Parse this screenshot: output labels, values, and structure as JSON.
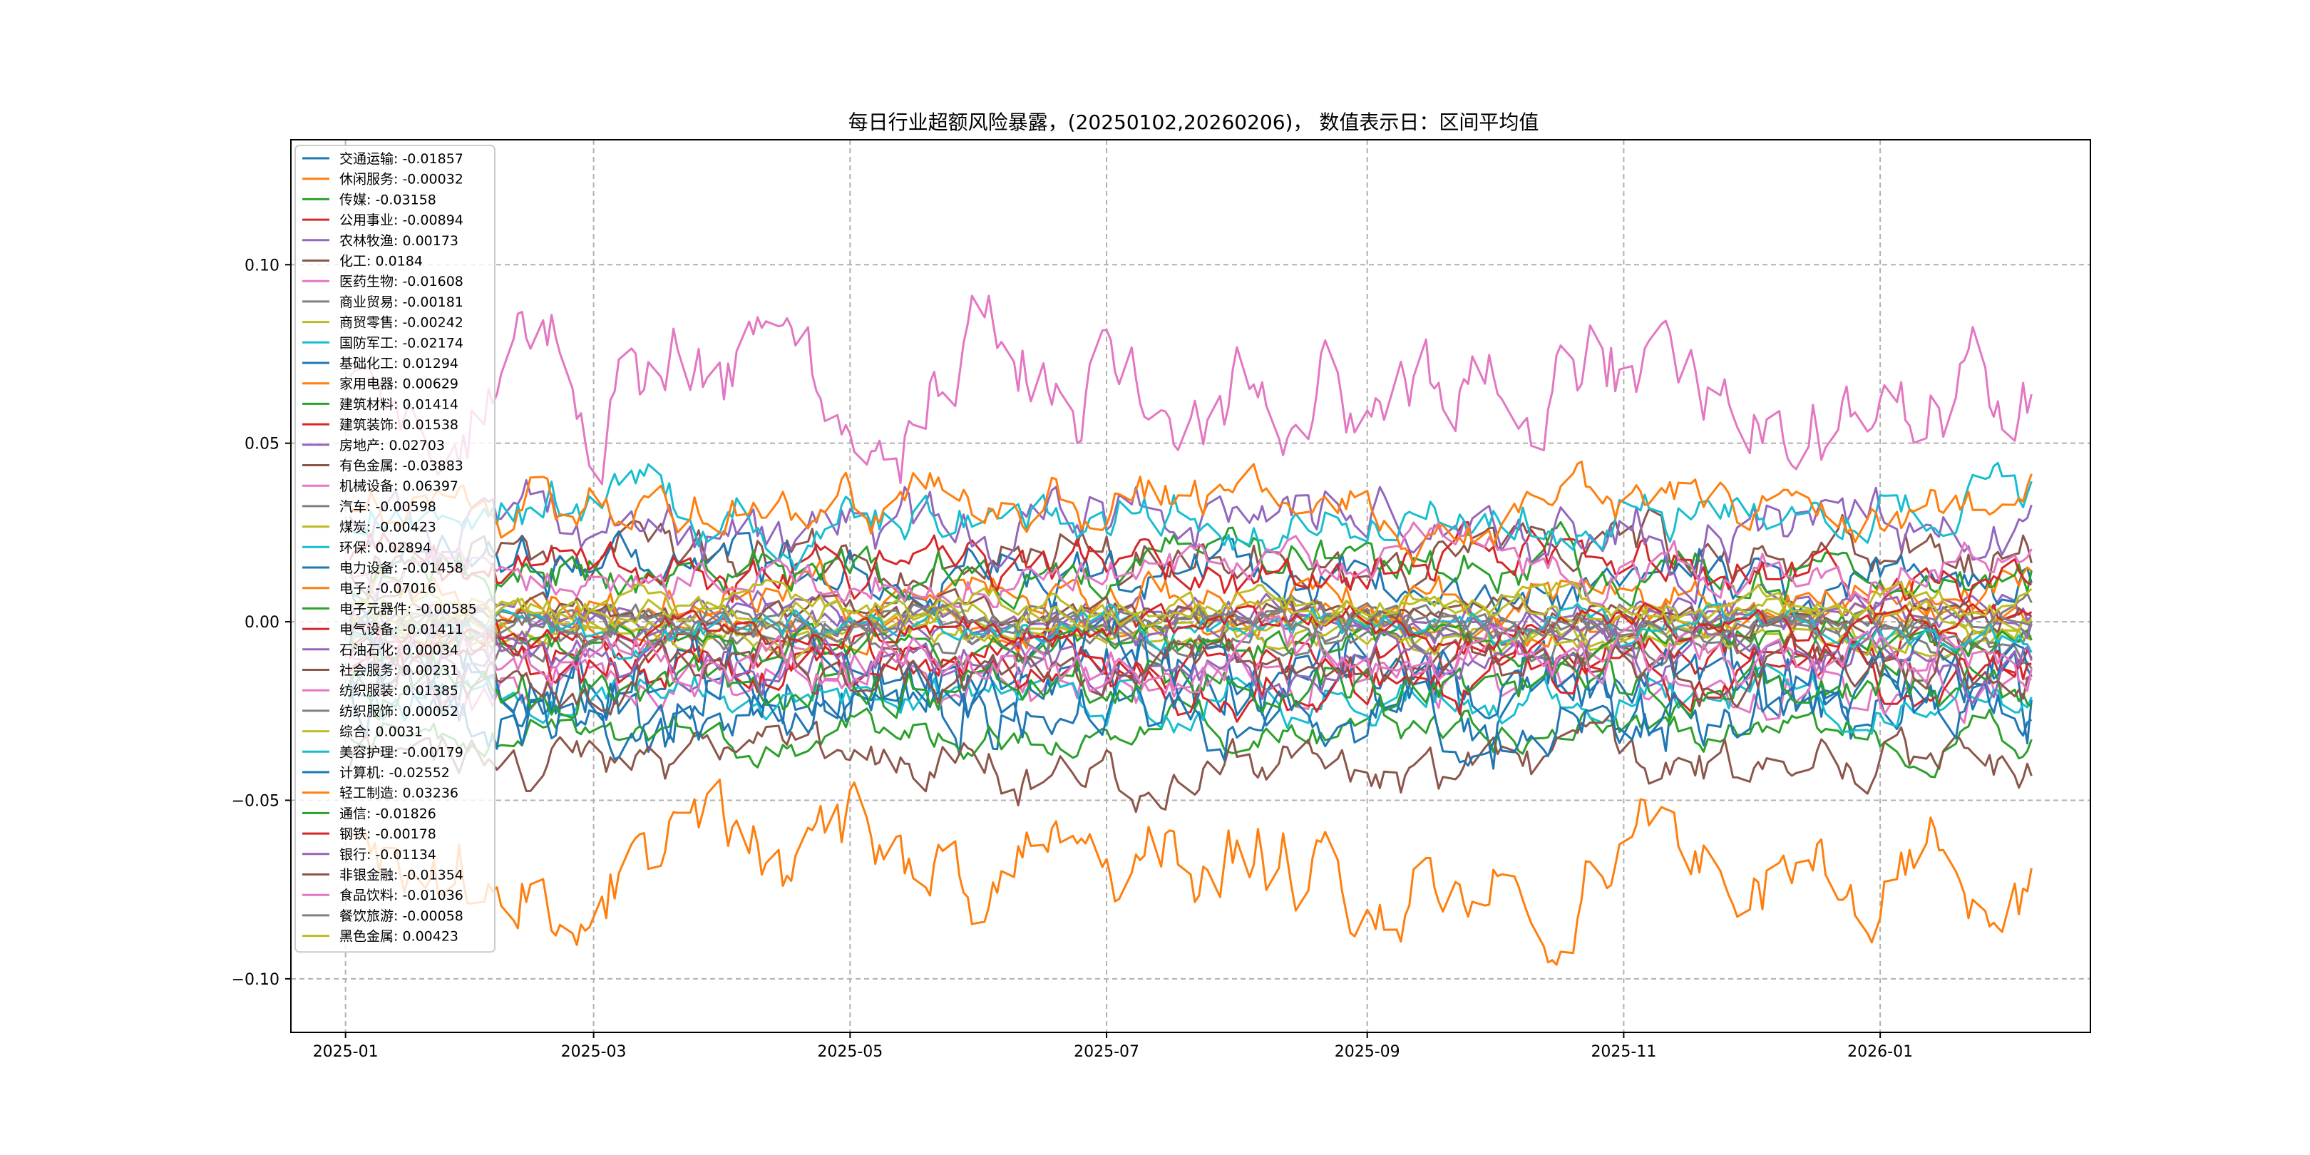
{
  "chart_data": {
    "type": "line",
    "title": "每日行业超额风险暴露，(20250102,20260206)， 数值表示日：区间平均值",
    "xlabel": "",
    "ylabel": "",
    "x_start": "2025-01-02",
    "x_end": "2026-02-06",
    "x_axis_range": [
      "2024-12-19",
      "2026-02-20"
    ],
    "ylim": [
      -0.115,
      0.135
    ],
    "grid": true,
    "legend_position": "upper-left",
    "xticks": [
      "2025-01",
      "2025-03",
      "2025-05",
      "2025-07",
      "2025-09",
      "2025-11",
      "2026-01"
    ],
    "yticks": [
      "0.10",
      "0.05",
      "0.00",
      "−0.05",
      "−0.10"
    ],
    "colors": [
      "#1f77b4",
      "#ff7f0e",
      "#2ca02c",
      "#d62728",
      "#9467bd",
      "#8c564b",
      "#e377c2",
      "#7f7f7f",
      "#bcbd22",
      "#17becf"
    ],
    "series": [
      {
        "name": "交通运输",
        "mean": -0.01857,
        "label": "交通运输: -0.01857",
        "amp": 0.018
      },
      {
        "name": "休闲服务",
        "mean": -0.00032,
        "label": "休闲服务: -0.00032",
        "amp": 0.006
      },
      {
        "name": "传媒",
        "mean": -0.03158,
        "label": "传媒: -0.03158",
        "amp": 0.007
      },
      {
        "name": "公用事业",
        "mean": -0.00894,
        "label": "公用事业: -0.00894",
        "amp": 0.008
      },
      {
        "name": "农林牧渔",
        "mean": 0.00173,
        "label": "农林牧渔: 0.00173",
        "amp": 0.006
      },
      {
        "name": "化工",
        "mean": 0.0184,
        "label": "化工: 0.0184",
        "amp": 0.01
      },
      {
        "name": "医药生物",
        "mean": -0.01608,
        "label": "医药生物: -0.01608",
        "amp": 0.01
      },
      {
        "name": "商业贸易",
        "mean": -0.00181,
        "label": "商业贸易: -0.00181",
        "amp": 0.006
      },
      {
        "name": "商贸零售",
        "mean": -0.00242,
        "label": "商贸零售: -0.00242",
        "amp": 0.005
      },
      {
        "name": "国防军工",
        "mean": -0.02174,
        "label": "国防军工: -0.02174",
        "amp": 0.008
      },
      {
        "name": "基础化工",
        "mean": 0.01294,
        "label": "基础化工: 0.01294",
        "amp": 0.01
      },
      {
        "name": "家用电器",
        "mean": 0.00629,
        "label": "家用电器: 0.00629",
        "amp": 0.008
      },
      {
        "name": "建筑材料",
        "mean": 0.01414,
        "label": "建筑材料: 0.01414",
        "amp": 0.009
      },
      {
        "name": "建筑装饰",
        "mean": 0.01538,
        "label": "建筑装饰: 0.01538",
        "amp": 0.009
      },
      {
        "name": "房地产",
        "mean": 0.02703,
        "label": "房地产: 0.02703",
        "amp": 0.012
      },
      {
        "name": "有色金属",
        "mean": -0.03883,
        "label": "有色金属: -0.03883",
        "amp": 0.01
      },
      {
        "name": "机械设备",
        "mean": 0.06397,
        "label": "机械设备: 0.06397",
        "amp": 0.02
      },
      {
        "name": "汽车",
        "mean": -0.00598,
        "label": "汽车: -0.00598",
        "amp": 0.006
      },
      {
        "name": "煤炭",
        "mean": -0.00423,
        "label": "煤炭: -0.00423",
        "amp": 0.005
      },
      {
        "name": "环保",
        "mean": 0.02894,
        "label": "环保: 0.02894",
        "amp": 0.01
      },
      {
        "name": "电力设备",
        "mean": -0.01458,
        "label": "电力设备: -0.01458",
        "amp": 0.012
      },
      {
        "name": "电子",
        "mean": -0.07016,
        "label": "电子: -0.07016",
        "amp": 0.018
      },
      {
        "name": "电子元器件",
        "mean": -0.00585,
        "label": "电子元器件: -0.00585",
        "amp": 0.006
      },
      {
        "name": "电气设备",
        "mean": -0.01411,
        "label": "电气设备: -0.01411",
        "amp": 0.009
      },
      {
        "name": "石油石化",
        "mean": 0.00034,
        "label": "石油石化: 0.00034",
        "amp": 0.006
      },
      {
        "name": "社会服务",
        "mean": 0.00231,
        "label": "社会服务: 0.00231",
        "amp": 0.005
      },
      {
        "name": "纺织服装",
        "mean": 0.01385,
        "label": "纺织服装: 0.01385",
        "amp": 0.008
      },
      {
        "name": "纺织服饰",
        "mean": 0.00052,
        "label": "纺织服饰: 0.00052",
        "amp": 0.005
      },
      {
        "name": "综合",
        "mean": 0.0031,
        "label": "综合: 0.0031",
        "amp": 0.005
      },
      {
        "name": "美容护理",
        "mean": -0.00179,
        "label": "美容护理: -0.00179",
        "amp": 0.006
      },
      {
        "name": "计算机",
        "mean": -0.02552,
        "label": "计算机: -0.02552",
        "amp": 0.012
      },
      {
        "name": "轻工制造",
        "mean": 0.03236,
        "label": "轻工制造: 0.03236",
        "amp": 0.01
      },
      {
        "name": "通信",
        "mean": -0.01826,
        "label": "通信: -0.01826",
        "amp": 0.009
      },
      {
        "name": "钢铁",
        "mean": -0.00178,
        "label": "钢铁: -0.00178",
        "amp": 0.005
      },
      {
        "name": "银行",
        "mean": -0.01134,
        "label": "银行: -0.01134",
        "amp": 0.008
      },
      {
        "name": "非银金融",
        "mean": -0.01354,
        "label": "非银金融: -0.01354",
        "amp": 0.009
      },
      {
        "name": "食品饮料",
        "mean": -0.01036,
        "label": "食品饮料: -0.01036",
        "amp": 0.009
      },
      {
        "name": "餐饮旅游",
        "mean": -0.00058,
        "label": "餐饮旅游: -0.00058",
        "amp": 0.005
      },
      {
        "name": "黑色金属",
        "mean": 0.00423,
        "label": "黑色金属: 0.00423",
        "amp": 0.005
      }
    ]
  }
}
